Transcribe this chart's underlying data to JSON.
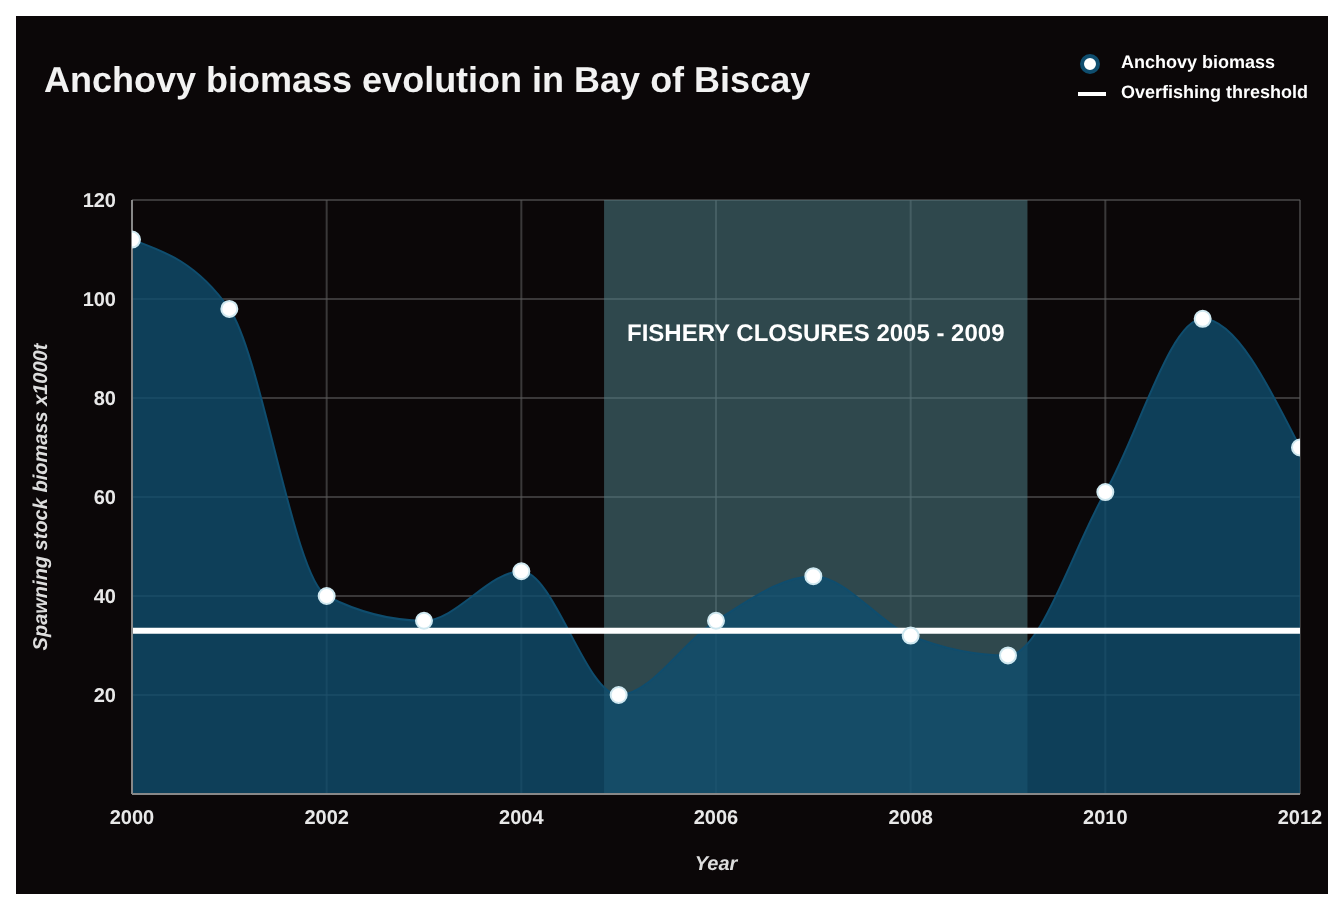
{
  "chart_data": {
    "type": "area",
    "title": "Anchovy biomass evolution in Bay of Biscay",
    "xlabel": "Year",
    "ylabel": "Spawning stock biomass  x1000t",
    "x": [
      2000,
      2001,
      2002,
      2003,
      2004,
      2005,
      2006,
      2007,
      2008,
      2009,
      2010,
      2011,
      2012
    ],
    "series": [
      {
        "name": "Anchovy biomass",
        "color": "#0f4d6e",
        "values": [
          112,
          98,
          40,
          35,
          45,
          20,
          35,
          44,
          32,
          28,
          61,
          96,
          70
        ]
      }
    ],
    "xlim": [
      2000,
      2012
    ],
    "xticks": [
      2000,
      2002,
      2004,
      2006,
      2008,
      2010,
      2012
    ],
    "ylim": [
      0,
      120
    ],
    "yticks": [
      20,
      40,
      60,
      80,
      100,
      120
    ],
    "ref_lines": [
      {
        "axis": "y",
        "value": 33,
        "label": "Overfishing threshold",
        "color": "#ffffff"
      }
    ],
    "bands": [
      {
        "axis": "x",
        "from": 2004.85,
        "to": 2009.2,
        "label": "FISHERY CLOSURES 2005 - 2009",
        "color": "#4f7e86"
      }
    ],
    "grid": true,
    "legend": "top right",
    "marker": "circle"
  }
}
